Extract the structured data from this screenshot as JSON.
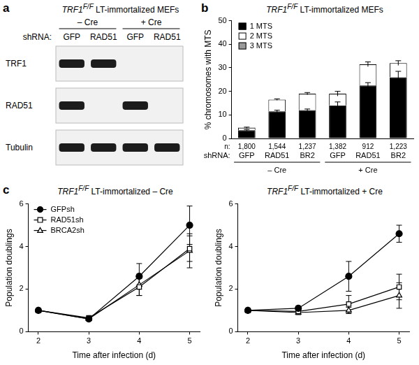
{
  "blot": {
    "panel": "a",
    "title": {
      "gene": "TRF1",
      "superscript": "F/F",
      "text": "LT-immortalized MEFs"
    },
    "group_labels": [
      "– Cre",
      "+ Cre"
    ],
    "row_label": "shRNA:",
    "lanes": [
      "GFP",
      "RAD51",
      "GFP",
      "RAD51"
    ],
    "rows": [
      {
        "label": "TRF1",
        "bands": [
          true,
          true,
          false,
          false
        ]
      },
      {
        "label": "RAD51",
        "bands": [
          true,
          false,
          true,
          false
        ]
      },
      {
        "label": "Tubulin",
        "bands": [
          true,
          true,
          true,
          true
        ]
      }
    ]
  },
  "chart_data": [
    {
      "panel": "b",
      "type": "bar",
      "stacked": true,
      "title": {
        "gene": "TRF1",
        "superscript": "F/F",
        "text": "LT-immortalized MEFs"
      },
      "y_label": "% chromosomes with MTS",
      "categories": [
        "GFP",
        "RAD51",
        "BR2",
        "GFP",
        "RAD51",
        "BR2"
      ],
      "row_label": "shRNA:",
      "n_label": "n:",
      "n": [
        1800,
        1544,
        1237,
        1382,
        912,
        1223
      ],
      "group_labels": [
        "– Cre",
        "+ Cre"
      ],
      "ylim": [
        0,
        50
      ],
      "yticks": [
        0,
        10,
        20,
        30,
        40,
        50
      ],
      "grid": false,
      "legend": "upper left",
      "series": [
        {
          "name": "1 MTS",
          "color": "#000000",
          "values": [
            3.5,
            11.5,
            12,
            14,
            22.5,
            26
          ],
          "errors": [
            0.3,
            0.5,
            0.5,
            1.5,
            1.2,
            2.5
          ]
        },
        {
          "name": "2 MTS",
          "color": "#ffffff",
          "values": [
            1.0,
            5.0,
            7.0,
            5.0,
            9.0,
            6.0
          ],
          "errors": [
            0.3,
            0.3,
            0.5,
            1.0,
            1.0,
            1.0
          ]
        },
        {
          "name": "3 MTS",
          "color": "#999999",
          "values": [
            0.2,
            0,
            0,
            0,
            0,
            0
          ]
        }
      ]
    },
    {
      "panel": "c",
      "type": "line",
      "title": {
        "gene": "TRF1",
        "superscript": "F/F",
        "text": "LT-immortalized – Cre"
      },
      "x_label": "Time after infection (d)",
      "y_label": "Population doublings",
      "x": [
        2,
        3,
        4,
        5
      ],
      "xlim": [
        1.8,
        5.2
      ],
      "xticks": [
        2,
        3,
        4,
        5
      ],
      "ylim": [
        0,
        6
      ],
      "yticks": [
        0,
        2,
        4,
        6
      ],
      "grid": false,
      "legend": "upper left",
      "series": [
        {
          "name": "GFPsh",
          "color": "#000000",
          "marker": "filled circle",
          "values": [
            1,
            0.6,
            2.6,
            5.0
          ],
          "errors": [
            0,
            0,
            0.6,
            0.9
          ]
        },
        {
          "name": "RAD51sh",
          "color": "#000000",
          "marker": "open square",
          "values": [
            1,
            0.65,
            2.1,
            3.9
          ],
          "errors": [
            0,
            0,
            0.4,
            0.6
          ]
        },
        {
          "name": "BRCA2sh",
          "color": "#000000",
          "marker": "open triangle",
          "values": [
            1,
            0.6,
            2.2,
            3.8
          ],
          "errors": [
            0,
            0,
            0.5,
            0.8
          ]
        }
      ]
    },
    {
      "type": "line",
      "title": {
        "gene": "TRF1",
        "superscript": "F/F",
        "text": "LT-immortalized + Cre"
      },
      "x_label": "Time after infection (d)",
      "y_label": "Population doublings",
      "x": [
        2,
        3,
        4,
        5
      ],
      "xlim": [
        1.8,
        5.2
      ],
      "xticks": [
        2,
        3,
        4,
        5
      ],
      "ylim": [
        0,
        6
      ],
      "yticks": [
        0,
        2,
        4,
        6
      ],
      "grid": false,
      "series": [
        {
          "name": "GFPsh",
          "color": "#000000",
          "marker": "filled circle",
          "values": [
            1,
            1.1,
            2.6,
            4.6
          ],
          "errors": [
            0,
            0.1,
            0.7,
            0.4
          ]
        },
        {
          "name": "RAD51sh",
          "color": "#000000",
          "marker": "open square",
          "values": [
            1,
            0.95,
            1.3,
            2.1
          ],
          "errors": [
            0,
            0.1,
            0.4,
            0.6
          ]
        },
        {
          "name": "BRCA2sh",
          "color": "#000000",
          "marker": "open triangle",
          "values": [
            1,
            0.9,
            1.0,
            1.7
          ],
          "errors": [
            0,
            0.1,
            0.15,
            0.6
          ]
        }
      ]
    }
  ]
}
